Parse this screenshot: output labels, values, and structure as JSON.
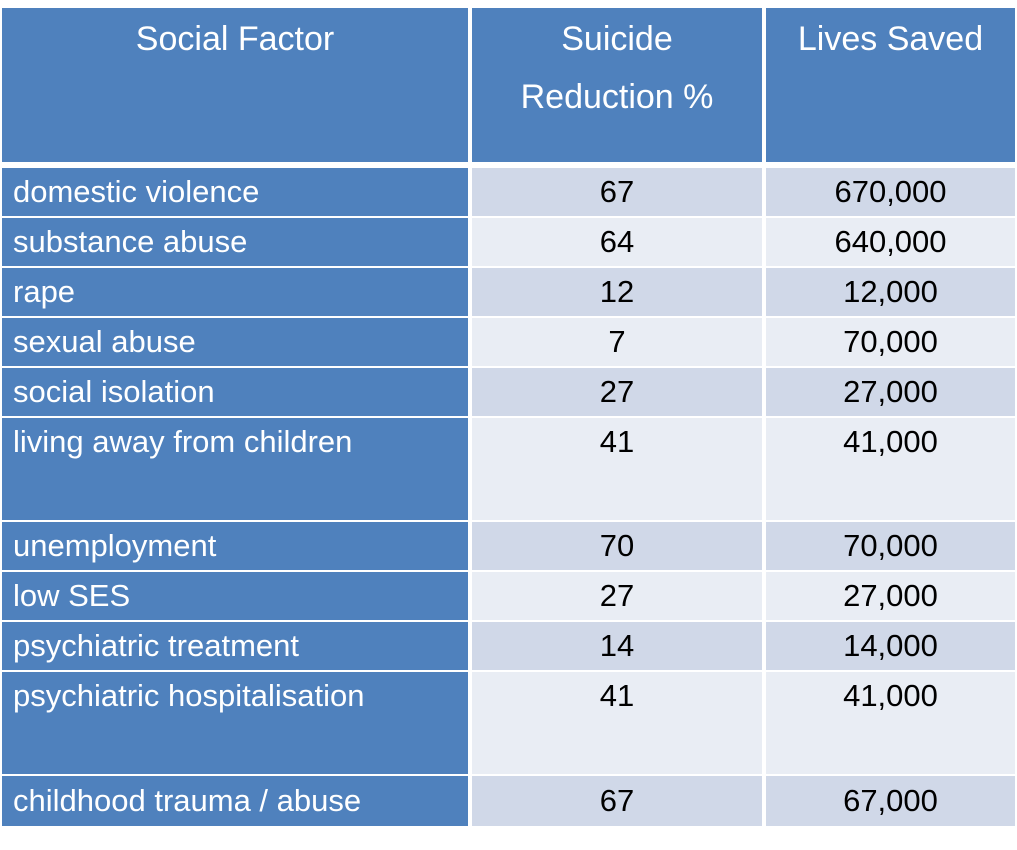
{
  "header": {
    "col1": "Social Factor",
    "col2_line1": "Suicide",
    "col2_line2": "Reduction %",
    "col3": "Lives Saved"
  },
  "rows": [
    {
      "factor": "domestic violence",
      "reduction": "67",
      "lives": "670,000"
    },
    {
      "factor": "substance abuse",
      "reduction": "64",
      "lives": "640,000"
    },
    {
      "factor": "rape",
      "reduction": "12",
      "lives": "12,000"
    },
    {
      "factor": "sexual abuse",
      "reduction": "7",
      "lives": "70,000"
    },
    {
      "factor": "social isolation",
      "reduction": "27",
      "lives": "27,000"
    },
    {
      "factor": "living away from children",
      "reduction": "41",
      "lives": "41,000"
    },
    {
      "factor": "unemployment",
      "reduction": "70",
      "lives": "70,000"
    },
    {
      "factor": "low SES",
      "reduction": "27",
      "lives": "27,000"
    },
    {
      "factor": "psychiatric treatment",
      "reduction": "14",
      "lives": "14,000"
    },
    {
      "factor": "psychiatric hospitalisation",
      "reduction": "41",
      "lives": "41,000"
    },
    {
      "factor": "childhood trauma / abuse",
      "reduction": "67",
      "lives": "67,000"
    }
  ],
  "colors": {
    "header": "#4f81bd",
    "row_band_dark": "#d0d8e8",
    "row_band_light": "#e9edf4",
    "grid": "#ffffff"
  }
}
